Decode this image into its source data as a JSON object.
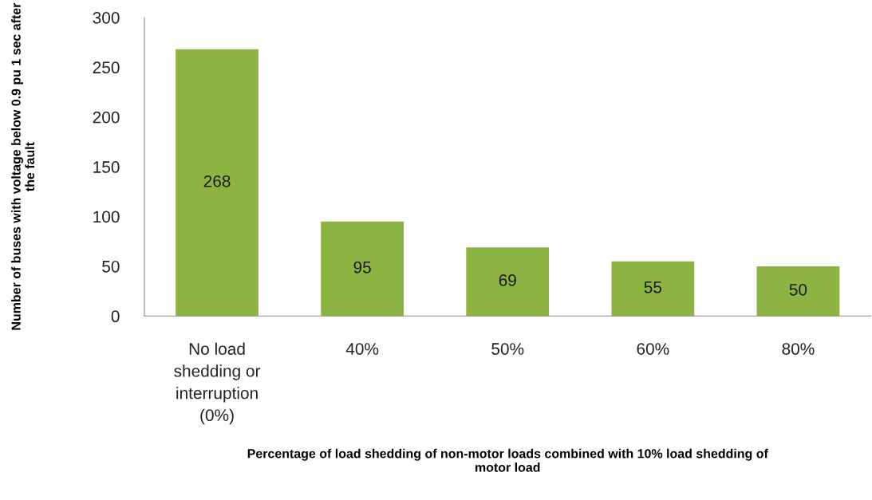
{
  "chart_data": {
    "type": "bar",
    "xlabel": "Percentage of load shedding of non-motor loads combined with 10% load shedding of\nmotor load",
    "ylabel": "Number of buses with voltage below 0.9 pu 1 sec after\nthe fault",
    "categories": [
      "No load\nshedding or\ninterruption\n(0%)",
      "40%",
      "50%",
      "60%",
      "80%"
    ],
    "values": [
      268,
      95,
      69,
      55,
      50
    ],
    "color": "#8db443",
    "ylim": [
      0,
      300
    ],
    "yticks": [
      0,
      50,
      100,
      150,
      200,
      250,
      300
    ],
    "data_labels": true,
    "grid": false,
    "legend": false
  }
}
